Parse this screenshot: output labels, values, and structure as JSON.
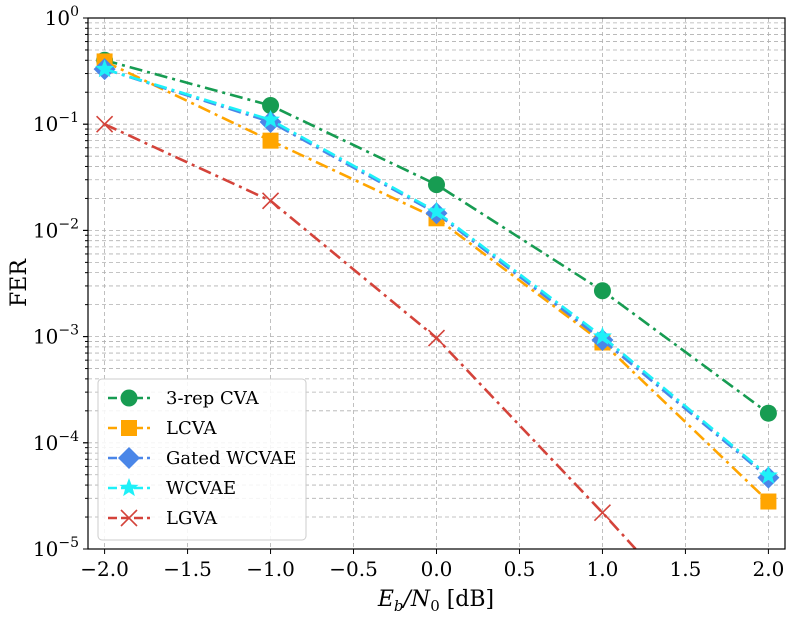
{
  "chart_data": {
    "type": "line",
    "xlabel_parts": {
      "main": "E",
      "sub1": "b",
      "mid": "/N",
      "sub2": "0",
      "unit": " [dB]"
    },
    "ylabel": "FER",
    "xlim": [
      -2.1,
      2.1
    ],
    "ylim_log10": [
      -5,
      0
    ],
    "y_scale": "log",
    "grid": true,
    "legend_position": "lower-left",
    "x_ticks": [
      -2.0,
      -1.5,
      -1.0,
      -0.5,
      0.0,
      0.5,
      1.0,
      1.5,
      2.0
    ],
    "x_tick_labels": [
      "−2.0",
      "−1.5",
      "−1.0",
      "−0.5",
      "0.0",
      "0.5",
      "1.0",
      "1.5",
      "2.0"
    ],
    "y_ticks": [
      {
        "value": 1,
        "base": "10",
        "exp": "0"
      },
      {
        "value": 0.1,
        "base": "10",
        "exp": "−1"
      },
      {
        "value": 0.01,
        "base": "10",
        "exp": "−2"
      },
      {
        "value": 0.001,
        "base": "10",
        "exp": "−3"
      },
      {
        "value": 0.0001,
        "base": "10",
        "exp": "−4"
      },
      {
        "value": 1e-05,
        "base": "10",
        "exp": "−5"
      }
    ],
    "series": [
      {
        "name": "3-rep CVA",
        "color": "#179c52",
        "dash": "dashdot",
        "marker": "circle",
        "x": [
          -2.0,
          -1.0,
          0.0,
          1.0,
          2.0
        ],
        "y": [
          0.4,
          0.15,
          0.027,
          0.0027,
          0.00019
        ]
      },
      {
        "name": "LCVA",
        "color": "#ffa500",
        "dash": "dashdot",
        "marker": "square",
        "x": [
          -2.0,
          -1.0,
          0.0,
          1.0,
          2.0
        ],
        "y": [
          0.39,
          0.07,
          0.013,
          0.00088,
          2.8e-05
        ]
      },
      {
        "name": "Gated WCVAE",
        "color": "#4a86e8",
        "dash": "dashdot",
        "marker": "diamond",
        "x": [
          -2.0,
          -1.0,
          0.0,
          1.0,
          2.0
        ],
        "y": [
          0.33,
          0.105,
          0.0145,
          0.00093,
          4.7e-05
        ]
      },
      {
        "name": "WCVAE",
        "color": "#1ef0f8",
        "dash": "dashdot",
        "marker": "star",
        "x": [
          -2.0,
          -1.0,
          0.0,
          1.0,
          2.0
        ],
        "y": [
          0.33,
          0.11,
          0.015,
          0.001,
          4.9e-05
        ]
      },
      {
        "name": "LGVA",
        "color": "#d4433a",
        "dash": "dashdot",
        "marker": "x",
        "x": [
          -2.0,
          -1.0,
          0.0,
          1.0,
          1.2
        ],
        "y": [
          0.1,
          0.019,
          0.00097,
          2.2e-05,
          1e-05
        ]
      }
    ]
  }
}
